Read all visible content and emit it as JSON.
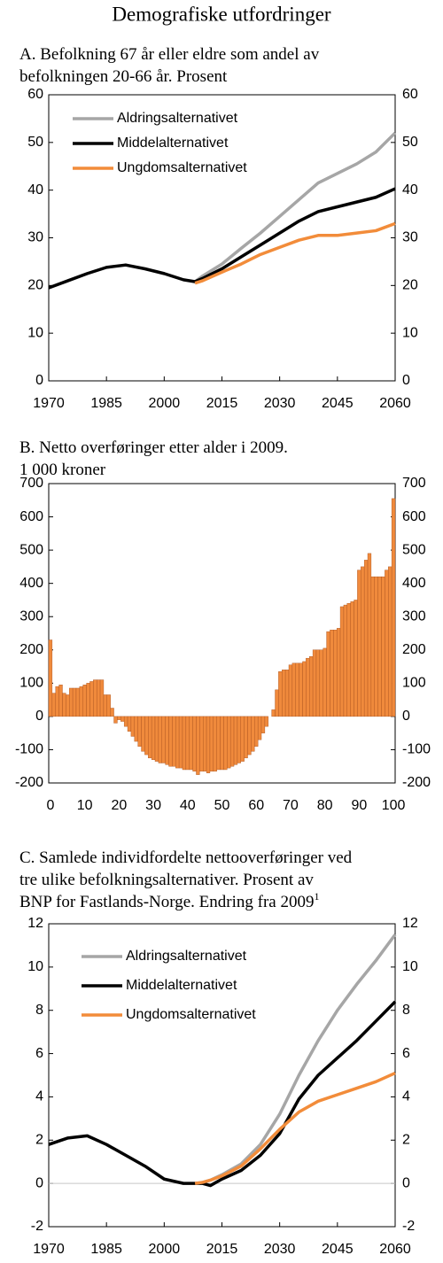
{
  "title": "Demografiske utfordringer",
  "chart_data": [
    {
      "type": "line",
      "title": [
        "A. Befolkning 67 år eller eldre som andel av",
        "befolkningen 20-66 år. Prosent"
      ],
      "x": [
        1970,
        1975,
        1980,
        1985,
        1990,
        1995,
        2000,
        2005,
        2008,
        2010,
        2015,
        2020,
        2025,
        2030,
        2035,
        2040,
        2045,
        2050,
        2055,
        2060
      ],
      "xlim": [
        1970,
        2060
      ],
      "xticks": [
        1970,
        1985,
        2000,
        2015,
        2030,
        2045,
        2060
      ],
      "ylim": [
        0,
        60
      ],
      "yticks": [
        0,
        10,
        20,
        30,
        40,
        50,
        60
      ],
      "mirror_yticks": true,
      "legend": "upper left",
      "series": [
        {
          "name": "Aldringsalternativet",
          "color": "#a6a6a6",
          "values": [
            null,
            null,
            null,
            null,
            null,
            null,
            null,
            null,
            20.8,
            22,
            24.5,
            27.8,
            31,
            34.5,
            38,
            41.5,
            43.5,
            45.5,
            48,
            52
          ]
        },
        {
          "name": "Middelalternativet",
          "color": "#000000",
          "values": [
            19.5,
            21,
            22.5,
            23.8,
            24.3,
            23.5,
            22.5,
            21.2,
            20.8,
            21.5,
            23.5,
            26,
            28.5,
            31,
            33.5,
            35.5,
            36.5,
            37.5,
            38.5,
            40.3
          ]
        },
        {
          "name": "Ungdomsalternativet",
          "color": "#f28c3a",
          "values": [
            null,
            null,
            null,
            null,
            null,
            null,
            null,
            null,
            20.5,
            21,
            22.8,
            24.5,
            26.5,
            28,
            29.5,
            30.5,
            30.5,
            31,
            31.5,
            33
          ]
        }
      ]
    },
    {
      "type": "bar",
      "title": [
        "B.  Netto overføringer etter alder i 2009.",
        "1 000 kroner"
      ],
      "categories": [
        0,
        null,
        null,
        null,
        null,
        null,
        null,
        null,
        null,
        null,
        10,
        null,
        null,
        null,
        null,
        null,
        null,
        null,
        null,
        null,
        20,
        null,
        null,
        null,
        null,
        null,
        null,
        null,
        null,
        null,
        30,
        null,
        null,
        null,
        null,
        null,
        null,
        null,
        null,
        null,
        40,
        null,
        null,
        null,
        null,
        null,
        null,
        null,
        null,
        null,
        50,
        null,
        null,
        null,
        null,
        null,
        null,
        null,
        null,
        null,
        60,
        null,
        null,
        null,
        null,
        null,
        null,
        null,
        null,
        null,
        70,
        null,
        null,
        null,
        null,
        null,
        null,
        null,
        null,
        null,
        80,
        null,
        null,
        null,
        null,
        null,
        null,
        null,
        null,
        null,
        90,
        null,
        null,
        null,
        null,
        null,
        null,
        null,
        null,
        null,
        100
      ],
      "values": [
        230,
        70,
        90,
        95,
        70,
        65,
        85,
        85,
        85,
        90,
        95,
        100,
        105,
        110,
        110,
        110,
        65,
        65,
        25,
        -20,
        -10,
        -15,
        -30,
        -45,
        -60,
        -75,
        -90,
        -105,
        -115,
        -125,
        -130,
        -135,
        -140,
        -140,
        -145,
        -150,
        -150,
        -155,
        -155,
        -160,
        -160,
        -160,
        -165,
        -175,
        -165,
        -165,
        -170,
        -165,
        -165,
        -160,
        -160,
        -160,
        -155,
        -150,
        -145,
        -140,
        -135,
        -125,
        -115,
        -105,
        -90,
        -70,
        -50,
        -30,
        0,
        20,
        80,
        135,
        140,
        140,
        155,
        160,
        160,
        160,
        165,
        175,
        180,
        200,
        200,
        200,
        205,
        255,
        260,
        260,
        265,
        330,
        335,
        340,
        345,
        350,
        440,
        450,
        470,
        490,
        420,
        420,
        420,
        420,
        440,
        450,
        655
      ],
      "color": "#f08a3c",
      "edgecolor": "#a8501c",
      "ylim": [
        -200,
        700
      ],
      "yticks": [
        -200,
        -100,
        0,
        100,
        200,
        300,
        400,
        500,
        600,
        700
      ],
      "mirror_yticks": true
    },
    {
      "type": "line",
      "title": [
        "C.  Samlede individfordelte nettooverføringer ved",
        "tre ulike befolkningsalternativer. Prosent av",
        "BNP for Fastlands-Norge. Endring fra 2009"
      ],
      "title_footnote": "1",
      "x": [
        1970,
        1975,
        1980,
        1985,
        1990,
        1995,
        2000,
        2005,
        2008,
        2010,
        2012,
        2015,
        2020,
        2025,
        2030,
        2035,
        2040,
        2045,
        2050,
        2055,
        2060
      ],
      "xlim": [
        1970,
        2060
      ],
      "xticks": [
        1970,
        1985,
        2000,
        2015,
        2030,
        2045,
        2060
      ],
      "ylim": [
        -2,
        12
      ],
      "yticks": [
        -2,
        0,
        2,
        4,
        6,
        8,
        10,
        12
      ],
      "mirror_yticks": true,
      "zero_line": true,
      "legend": "upper left",
      "series": [
        {
          "name": "Aldringsalternativet",
          "color": "#a6a6a6",
          "values": [
            null,
            null,
            null,
            null,
            null,
            null,
            null,
            null,
            0,
            0.05,
            0.15,
            0.4,
            0.9,
            1.8,
            3.2,
            5,
            6.6,
            8,
            9.2,
            10.3,
            11.5
          ]
        },
        {
          "name": "Middelalternativet",
          "color": "#000000",
          "values": [
            1.8,
            2.1,
            2.2,
            1.8,
            1.3,
            0.8,
            0.2,
            0,
            0,
            0,
            -0.1,
            0.2,
            0.6,
            1.3,
            2.3,
            3.9,
            5,
            5.8,
            6.6,
            7.5,
            8.4
          ]
        },
        {
          "name": "Ungdomsalternativet",
          "color": "#f28c3a",
          "values": [
            null,
            null,
            null,
            null,
            null,
            null,
            null,
            null,
            0,
            0.05,
            0.15,
            0.35,
            0.8,
            1.6,
            2.5,
            3.3,
            3.8,
            4.1,
            4.4,
            4.7,
            5.1
          ]
        }
      ]
    }
  ]
}
